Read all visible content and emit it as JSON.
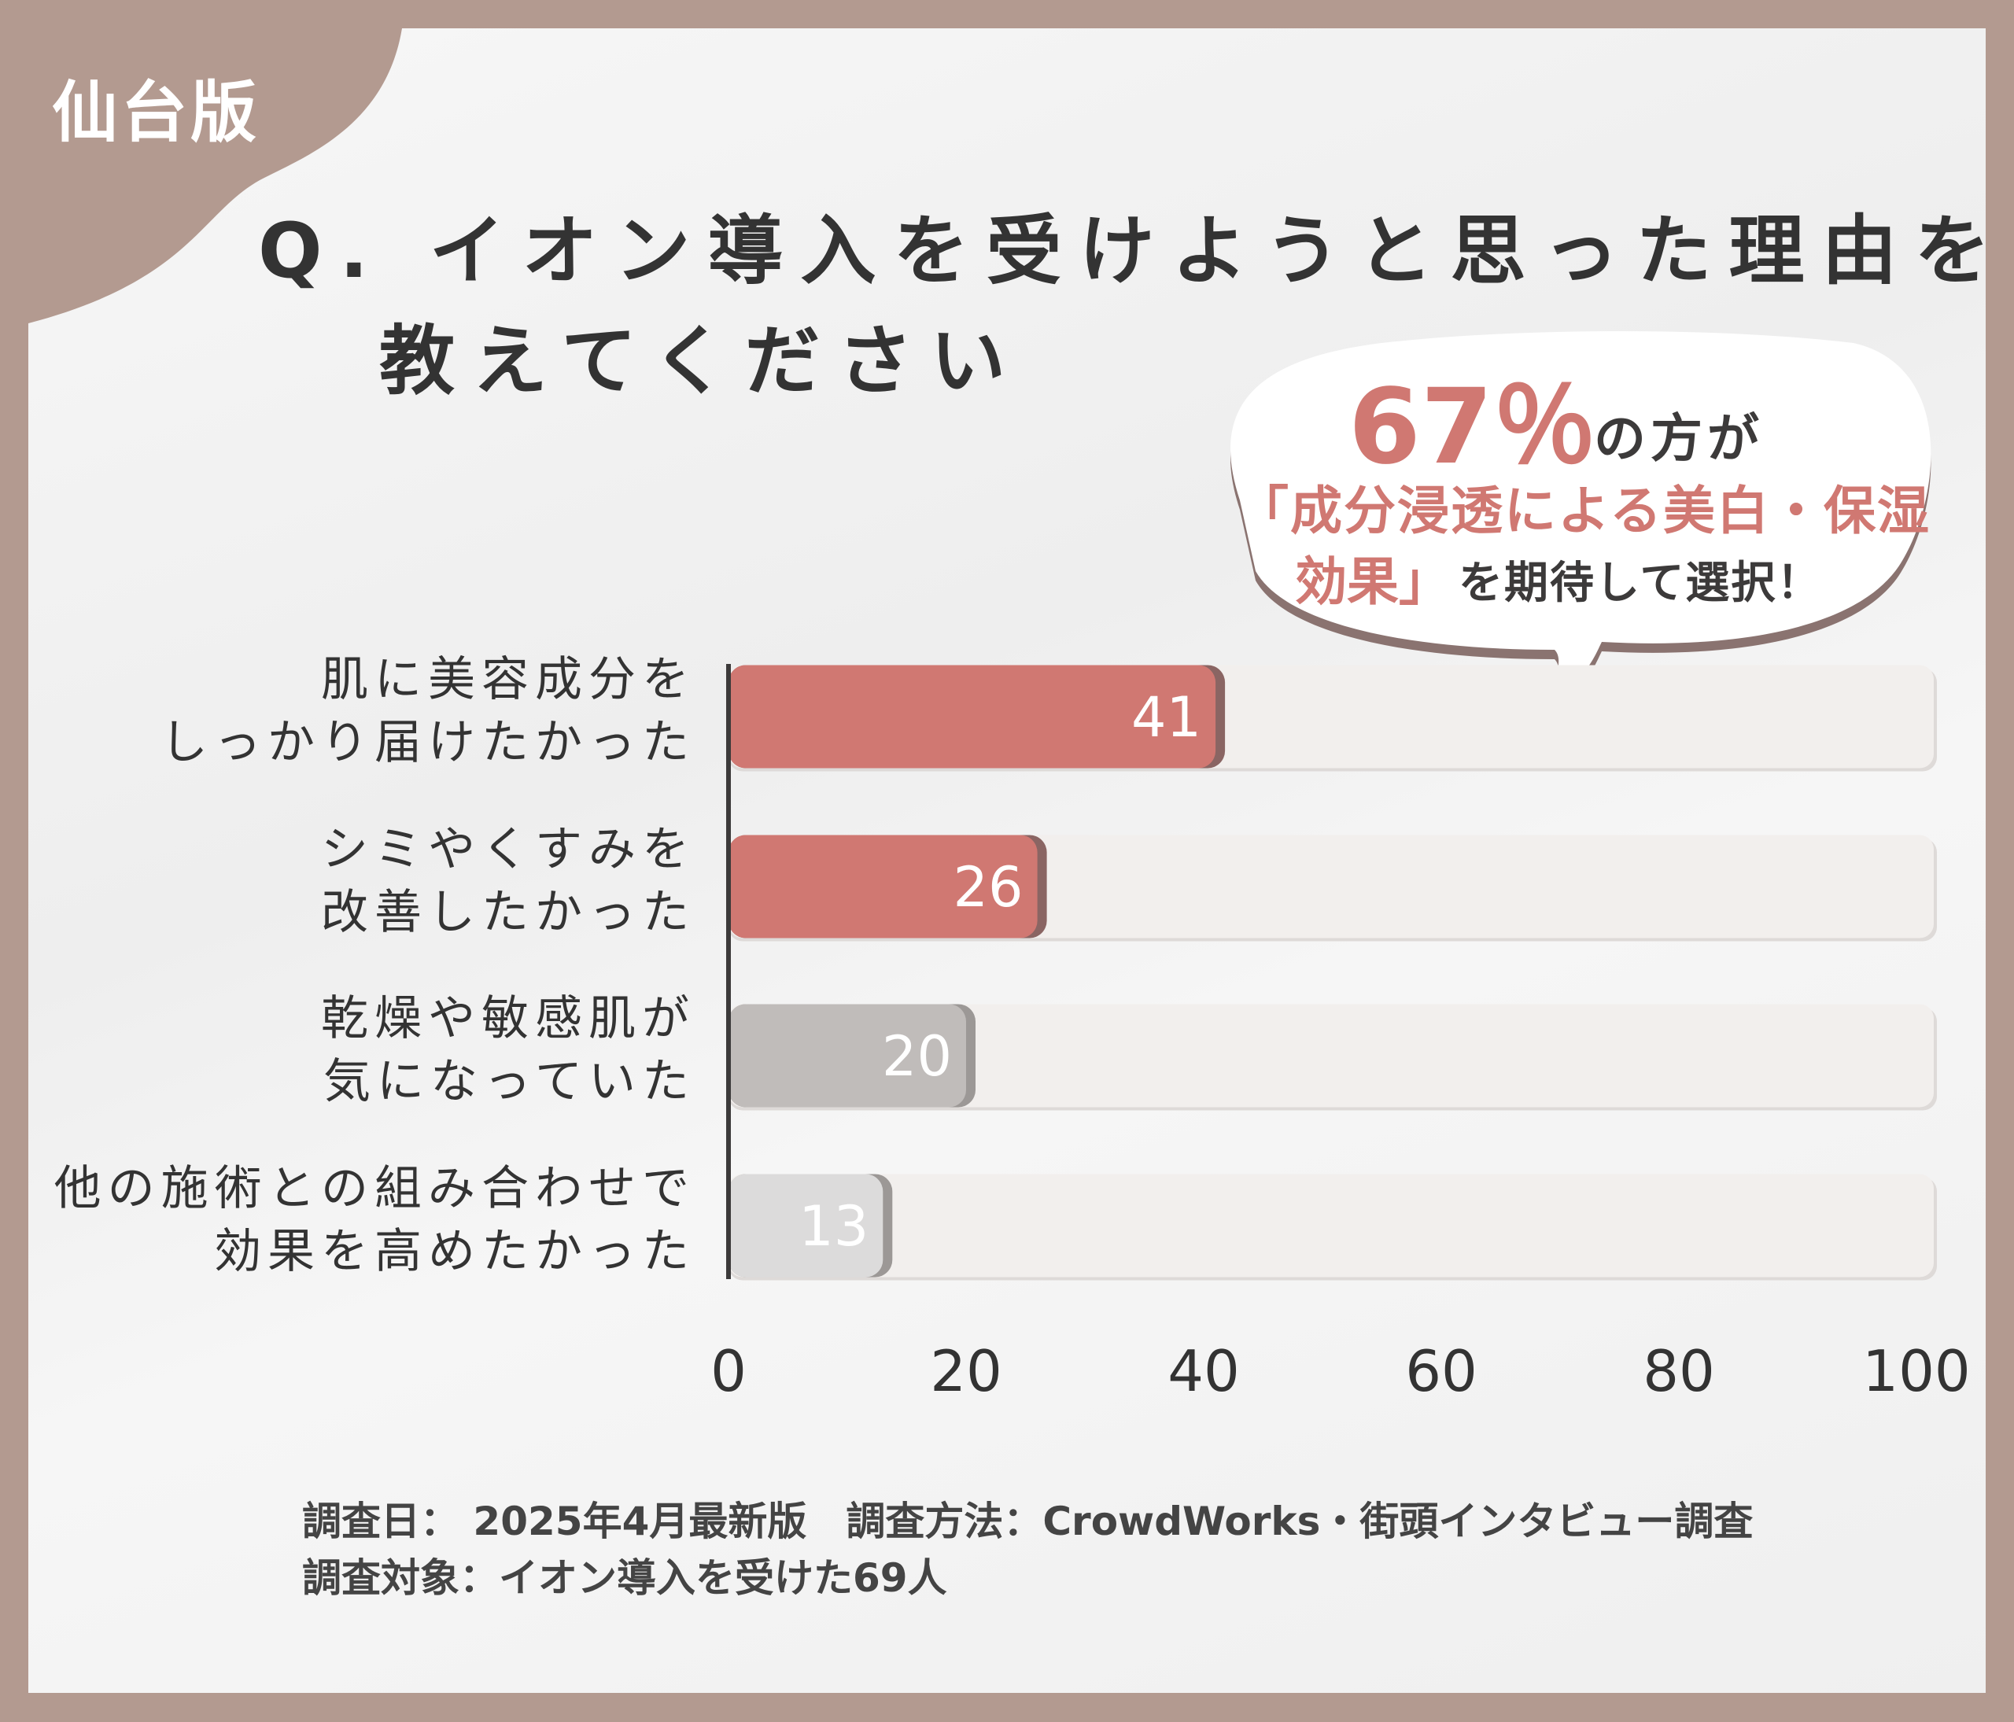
{
  "badge": "仙台版",
  "title": {
    "line1": "Q. イオン導入を受けようと思った理由を",
    "line2": "教えてください"
  },
  "callout": {
    "percent": "67％",
    "suffix": "の方が",
    "highlight_line1": "「成分浸透による美白・保湿",
    "highlight_line2": "効果」",
    "tail_text": "を期待して選択！"
  },
  "colors": {
    "frame": "#b39a90",
    "accent": "#d07872",
    "accent_shadow": "#8a6563",
    "gray_bar": "#c0bcba",
    "light_gray_bar": "#dcdbdb",
    "track": "#f2efed"
  },
  "chart_data": {
    "type": "bar",
    "orientation": "horizontal",
    "categories": [
      [
        "肌に美容成分を",
        "しっかり届けたかった"
      ],
      [
        "シミやくすみを",
        "改善したかった"
      ],
      [
        "乾燥や敏感肌が",
        "気になっていた"
      ],
      [
        "他の施術との組み合わせで",
        "効果を高めたかった"
      ]
    ],
    "values": [
      41,
      26,
      20,
      13
    ],
    "value_labels": [
      "41",
      "26",
      "20",
      "13"
    ],
    "bar_colors": [
      "#d07872",
      "#d07872",
      "#c0bcba",
      "#dcdbdb"
    ],
    "xlim": [
      0,
      100
    ],
    "xticks": [
      "0",
      "20",
      "40",
      "60",
      "80",
      "100"
    ],
    "grid": false
  },
  "footer": {
    "line1": "調査日： 2025年4月最新版　調査方法：CrowdWorks・街頭インタビュー調査",
    "line2": "調査対象：イオン導入を受けた69人"
  }
}
